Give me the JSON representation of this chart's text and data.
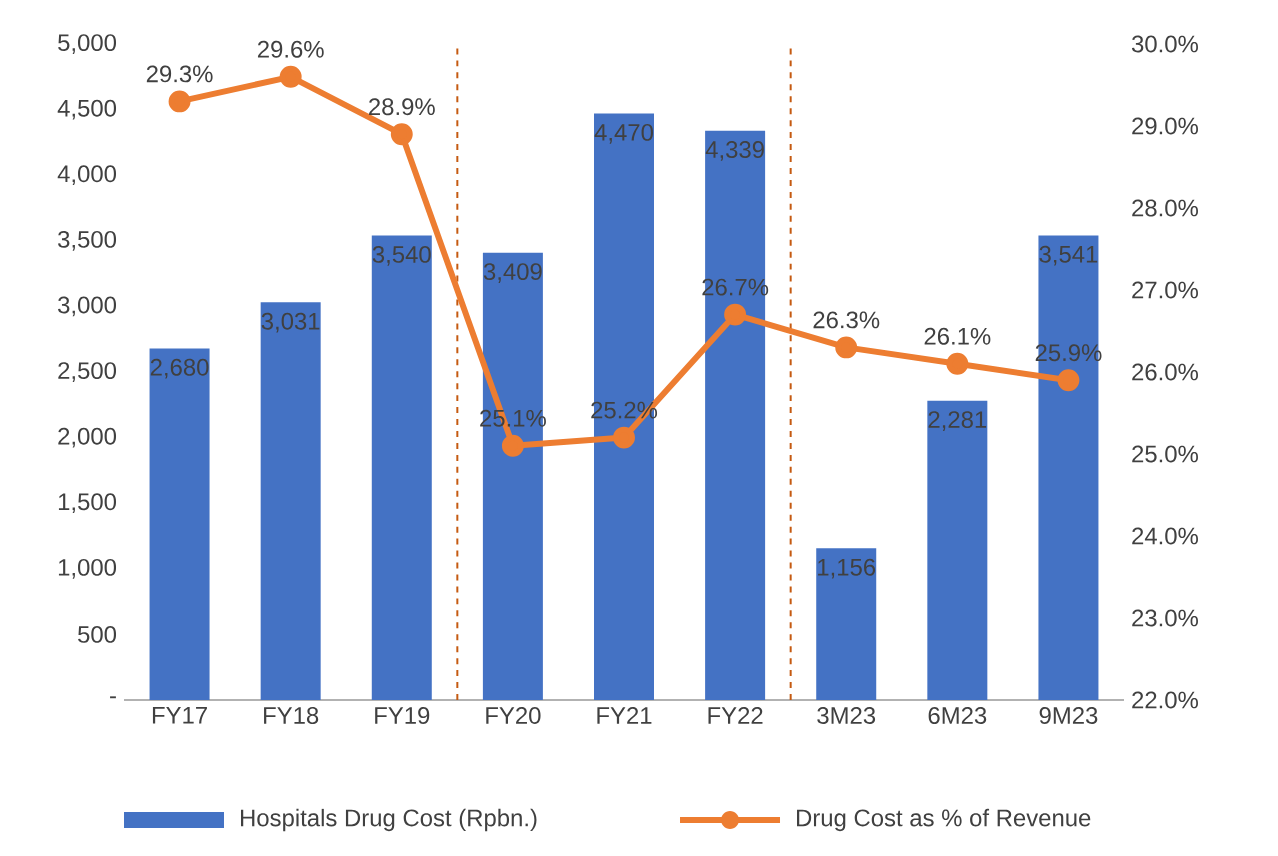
{
  "chart_data": {
    "type": "bar",
    "categories": [
      "FY17",
      "FY18",
      "FY19",
      "FY20",
      "FY21",
      "FY22",
      "3M23",
      "6M23",
      "9M23"
    ],
    "series": [
      {
        "name": "Hospitals Drug Cost (Rpbn.)",
        "color": "#4472c4",
        "values": [
          2680,
          3031,
          3540,
          3409,
          4470,
          4339,
          1156,
          2281,
          3541
        ],
        "value_labels": [
          "2,680",
          "3,031",
          "3,540",
          "3,409",
          "4,470",
          "4,339",
          "1,156",
          "2,281",
          "3,541"
        ]
      },
      {
        "name": "Drug Cost as % of Revenue",
        "type": "line",
        "axis": "y2",
        "color": "#ed7d31",
        "marker": "circle",
        "values": [
          29.3,
          29.6,
          28.9,
          25.1,
          25.2,
          26.7,
          26.3,
          26.1,
          25.9
        ],
        "value_labels": [
          "29.3%",
          "29.6%",
          "28.9%",
          "25.1%",
          "25.2%",
          "26.7%",
          "26.3%",
          "26.1%",
          "25.9%"
        ]
      }
    ],
    "ylim": [
      0,
      5000
    ],
    "yticks": [
      {
        "value": 0,
        "label": "-"
      },
      {
        "value": 500,
        "label": "500"
      },
      {
        "value": 1000,
        "label": "1,000"
      },
      {
        "value": 1500,
        "label": "1,500"
      },
      {
        "value": 2000,
        "label": "2,000"
      },
      {
        "value": 2500,
        "label": "2,500"
      },
      {
        "value": 3000,
        "label": "3,000"
      },
      {
        "value": 3500,
        "label": "3,500"
      },
      {
        "value": 4000,
        "label": "4,000"
      },
      {
        "value": 4500,
        "label": "4,500"
      },
      {
        "value": 5000,
        "label": "5,000"
      }
    ],
    "y2lim": [
      22,
      30
    ],
    "y2ticks": [
      {
        "value": 22,
        "label": "22.0%"
      },
      {
        "value": 23,
        "label": "23.0%"
      },
      {
        "value": 24,
        "label": "24.0%"
      },
      {
        "value": 25,
        "label": "25.0%"
      },
      {
        "value": 26,
        "label": "26.0%"
      },
      {
        "value": 27,
        "label": "27.0%"
      },
      {
        "value": 28,
        "label": "28.0%"
      },
      {
        "value": 29,
        "label": "29.0%"
      },
      {
        "value": 30,
        "label": "30.0%"
      }
    ],
    "legend": "bottom"
  }
}
